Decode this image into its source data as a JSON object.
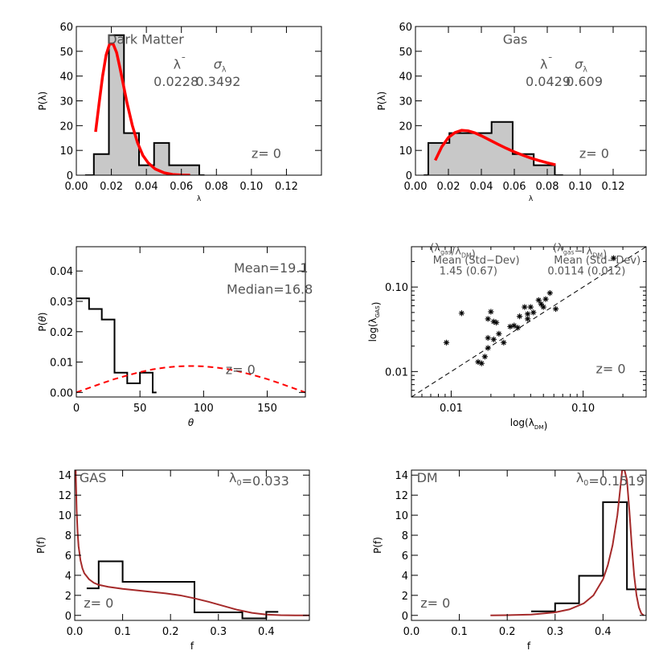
{
  "chart_data": [
    {
      "id": "p1",
      "type": "bar",
      "xlabel": "λ",
      "ylabel": "P(λ)",
      "xlim": [
        0,
        0.14
      ],
      "ylim": [
        0,
        60
      ],
      "xticks": [
        0.0,
        0.02,
        0.04,
        0.06,
        0.08,
        0.1,
        0.12
      ],
      "xtick_labels": [
        "0.00",
        "0.02",
        "0.04",
        "0.06",
        "0.08",
        "0.10",
        "0.12"
      ],
      "yticks": [
        0,
        10,
        20,
        30,
        40,
        50,
        60
      ],
      "ytick_labels": [
        "0",
        "10",
        "20",
        "30",
        "40",
        "50",
        "60"
      ],
      "hist": {
        "edges": [
          0.005,
          0.01,
          0.0186,
          0.0272,
          0.0358,
          0.0444,
          0.053,
          0.0616,
          0.0702,
          0.0732
        ],
        "values": [
          0,
          8.5,
          56.5,
          17,
          4,
          13,
          4,
          4,
          0
        ],
        "fill": "#c8c8c8"
      },
      "fit": {
        "color": "#ff0000",
        "x": [
          0.011,
          0.013,
          0.015,
          0.017,
          0.019,
          0.021,
          0.023,
          0.025,
          0.027,
          0.029,
          0.032,
          0.035,
          0.038,
          0.041,
          0.045,
          0.05,
          0.055,
          0.06,
          0.065
        ],
        "y": [
          17.5,
          29,
          40,
          48.5,
          53,
          53,
          49.5,
          43,
          36,
          29,
          20,
          13,
          8,
          5,
          2.5,
          1,
          0.3,
          0.1,
          0
        ]
      },
      "annotations": [
        {
          "text": "Dark Matter",
          "x": 0.0395,
          "y": 53
        },
        {
          "text": "λ¯",
          "x": 0.059,
          "y": 43
        },
        {
          "text": "σλ",
          "x": 0.082,
          "y": 43
        },
        {
          "text": "0.0228",
          "x": 0.057,
          "y": 36
        },
        {
          "text": "0.3492",
          "x": 0.081,
          "y": 36
        },
        {
          "text": "z= 0",
          "x": 0.1085,
          "y": 7
        }
      ]
    },
    {
      "id": "p2",
      "type": "bar",
      "xlabel": "λ",
      "ylabel": "P(λ)",
      "xlim": [
        0,
        0.14
      ],
      "ylim": [
        0,
        60
      ],
      "xticks": [
        0.0,
        0.02,
        0.04,
        0.06,
        0.08,
        0.1,
        0.12
      ],
      "xtick_labels": [
        "0.00",
        "0.02",
        "0.04",
        "0.06",
        "0.08",
        "0.10",
        "0.12"
      ],
      "yticks": [
        0,
        10,
        20,
        30,
        40,
        50,
        60
      ],
      "ytick_labels": [
        "0",
        "10",
        "20",
        "30",
        "40",
        "50",
        "60"
      ],
      "hist": {
        "edges": [
          0.005,
          0.0078,
          0.0206,
          0.0334,
          0.0462,
          0.059,
          0.0718,
          0.0846,
          0.0896
        ],
        "values": [
          0,
          13,
          17,
          17,
          21.5,
          8.5,
          4,
          0
        ],
        "fill": "#c8c8c8"
      },
      "fit": {
        "color": "#ff0000",
        "x": [
          0.012,
          0.016,
          0.02,
          0.024,
          0.028,
          0.032,
          0.036,
          0.04,
          0.045,
          0.05,
          0.055,
          0.06,
          0.065,
          0.07,
          0.075,
          0.08,
          0.085
        ],
        "y": [
          6,
          11.5,
          15.2,
          17.2,
          18.1,
          17.9,
          17.1,
          15.9,
          14.2,
          12.5,
          10.9,
          9.4,
          8.1,
          6.9,
          5.9,
          5,
          4.2
        ]
      },
      "annotations": [
        {
          "text": "Gas",
          "x": 0.0605,
          "y": 53
        },
        {
          "text": "λ¯",
          "x": 0.0795,
          "y": 43
        },
        {
          "text": "σλ",
          "x": 0.1005,
          "y": 43
        },
        {
          "text": "0.0429",
          "x": 0.0805,
          "y": 36
        },
        {
          "text": "0.609",
          "x": 0.1025,
          "y": 36
        },
        {
          "text": "z= 0",
          "x": 0.1085,
          "y": 7
        }
      ]
    },
    {
      "id": "p3",
      "type": "line",
      "xlabel": "θ",
      "ylabel": "P(θ)",
      "xlim": [
        0,
        180
      ],
      "ylim": [
        -0.0015,
        0.048
      ],
      "xticks": [
        0,
        50,
        100,
        150
      ],
      "xtick_labels": [
        "0",
        "50",
        "100",
        "150"
      ],
      "yticks": [
        0,
        0.01,
        0.02,
        0.03,
        0.04
      ],
      "ytick_labels": [
        "0.00",
        "0.01",
        "0.02",
        "0.03",
        "0.04"
      ],
      "hist": {
        "edges": [
          0,
          10,
          20,
          30,
          40,
          50,
          60,
          63
        ],
        "values": [
          0.031,
          0.0275,
          0.024,
          0.0065,
          0.003,
          0.0065,
          0
        ],
        "fill": "none"
      },
      "curve": {
        "color": "#ff0000",
        "dashed": true,
        "x": [
          0,
          10,
          20,
          30,
          40,
          50,
          60,
          70,
          80,
          90,
          100,
          110,
          120,
          130,
          140,
          150,
          160,
          170,
          180
        ],
        "y": [
          0,
          0.0015,
          0.003,
          0.0044,
          0.0056,
          0.0067,
          0.0076,
          0.0082,
          0.0086,
          0.0087,
          0.0086,
          0.0082,
          0.0076,
          0.0067,
          0.0056,
          0.0044,
          0.003,
          0.0015,
          0
        ]
      },
      "annotations": [
        {
          "text": "Mean=19.1",
          "x": 153,
          "y": 0.0395
        },
        {
          "text": "Median=16.8",
          "x": 152,
          "y": 0.0325
        },
        {
          "text": "z= 0",
          "x": 129,
          "y": 0.006
        }
      ]
    },
    {
      "id": "p4",
      "type": "scatter",
      "xlabel": "log(λDM)",
      "ylabel": "log(λGAS)",
      "xscale": "log",
      "yscale": "log",
      "xlim": [
        0.005,
        0.3
      ],
      "ylim": [
        0.005,
        0.3
      ],
      "xticks": [
        0.01,
        0.1
      ],
      "xtick_labels": [
        "0.01",
        "0.10"
      ],
      "yticks": [
        0.01,
        0.1
      ],
      "ytick_labels": [
        "0.01",
        "0.10"
      ],
      "marker": "*",
      "points": [
        [
          0.0092,
          0.022
        ],
        [
          0.012,
          0.049
        ],
        [
          0.016,
          0.013
        ],
        [
          0.017,
          0.0125
        ],
        [
          0.018,
          0.015
        ],
        [
          0.019,
          0.025
        ],
        [
          0.019,
          0.019
        ],
        [
          0.019,
          0.042
        ],
        [
          0.02,
          0.051
        ],
        [
          0.021,
          0.039
        ],
        [
          0.021,
          0.024
        ],
        [
          0.022,
          0.038
        ],
        [
          0.023,
          0.028
        ],
        [
          0.025,
          0.022
        ],
        [
          0.028,
          0.034
        ],
        [
          0.03,
          0.035
        ],
        [
          0.032,
          0.033
        ],
        [
          0.033,
          0.045
        ],
        [
          0.036,
          0.058
        ],
        [
          0.038,
          0.048
        ],
        [
          0.038,
          0.042
        ],
        [
          0.04,
          0.058
        ],
        [
          0.042,
          0.05
        ],
        [
          0.046,
          0.07
        ],
        [
          0.048,
          0.063
        ],
        [
          0.05,
          0.058
        ],
        [
          0.052,
          0.072
        ],
        [
          0.056,
          0.085
        ],
        [
          0.062,
          0.055
        ],
        [
          0.17,
          0.22
        ]
      ],
      "diagonal": true,
      "annotations": [
        {
          "text": "(λgas/λDM)",
          "x": 0.0103,
          "y": 0.266
        },
        {
          "text": "(λgas− λDM)",
          "x": 0.0945,
          "y": 0.266
        },
        {
          "text": "Mean   (Std−Dev)",
          "x": 0.0155,
          "y": 0.19
        },
        {
          "text": "Mean   (Std−Dev)",
          "x": 0.128,
          "y": 0.19
        },
        {
          "text": "1.45  (0.67)",
          "x": 0.0135,
          "y": 0.141
        },
        {
          "text": "0.0114  (0.012)",
          "x": 0.106,
          "y": 0.141
        },
        {
          "text": "z= 0",
          "x": 0.162,
          "y": 0.0095
        }
      ]
    },
    {
      "id": "p5",
      "type": "line",
      "xlabel": "f",
      "ylabel": "P(f)",
      "xlim": [
        0,
        0.49
      ],
      "ylim": [
        -0.5,
        14.5
      ],
      "xticks": [
        0,
        0.1,
        0.2,
        0.3,
        0.4
      ],
      "xtick_labels": [
        "0.0",
        "0.1",
        "0.2",
        "0.3",
        "0.4"
      ],
      "yticks": [
        0,
        2,
        4,
        6,
        8,
        10,
        12,
        14
      ],
      "ytick_labels": [
        "0",
        "2",
        "4",
        "6",
        "8",
        "10",
        "12",
        "14"
      ],
      "hist": {
        "edges": [
          0.025,
          0.05,
          0.1,
          0.25,
          0.35,
          0.4,
          0.425
        ],
        "values": [
          2.7,
          5.4,
          3.35,
          0.3,
          -0.3,
          0.35
        ],
        "fill": "none"
      },
      "curve": {
        "color": "#a52a2a",
        "x": [
          0.002,
          0.004,
          0.006,
          0.008,
          0.012,
          0.016,
          0.02,
          0.03,
          0.04,
          0.05,
          0.07,
          0.1,
          0.13,
          0.16,
          0.19,
          0.22,
          0.25,
          0.28,
          0.31,
          0.34,
          0.37,
          0.4,
          0.43,
          0.46,
          0.49
        ],
        "y": [
          14.5,
          10.5,
          8.3,
          6.9,
          5.5,
          4.7,
          4.2,
          3.6,
          3.25,
          3.05,
          2.85,
          2.65,
          2.5,
          2.35,
          2.2,
          2.0,
          1.7,
          1.35,
          0.95,
          0.55,
          0.25,
          0.08,
          0.02,
          0,
          0
        ]
      },
      "annotations": [
        {
          "text": "GAS",
          "x": 0.038,
          "y": 13.3
        },
        {
          "text": "λ0=0.033",
          "x": 0.385,
          "y": 13.3
        },
        {
          "text": "z= 0",
          "x": 0.05,
          "y": 0.8
        }
      ]
    },
    {
      "id": "p6",
      "type": "line",
      "xlabel": "f",
      "ylabel": "P(f)",
      "xlim": [
        0,
        0.49
      ],
      "ylim": [
        -0.5,
        14.5
      ],
      "xticks": [
        0,
        0.1,
        0.2,
        0.3,
        0.4
      ],
      "xtick_labels": [
        "0.0",
        "0.1",
        "0.2",
        "0.3",
        "0.4"
      ],
      "yticks": [
        0,
        2,
        4,
        6,
        8,
        10,
        12,
        14
      ],
      "ytick_labels": [
        "0",
        "2",
        "4",
        "6",
        "8",
        "10",
        "12",
        "14"
      ],
      "hist": {
        "edges": [
          0.25,
          0.3,
          0.35,
          0.4,
          0.45,
          0.49
        ],
        "values": [
          0.4,
          1.2,
          3.95,
          11.3,
          2.6
        ],
        "fill": "none"
      },
      "curve": {
        "color": "#a52a2a",
        "x": [
          0.165,
          0.2,
          0.25,
          0.3,
          0.33,
          0.36,
          0.38,
          0.4,
          0.41,
          0.42,
          0.43,
          0.435,
          0.44,
          0.445,
          0.45,
          0.455,
          0.46,
          0.465,
          0.47,
          0.475,
          0.48,
          0.485
        ],
        "y": [
          0,
          0.02,
          0.08,
          0.3,
          0.6,
          1.2,
          2.0,
          3.6,
          5.0,
          7.0,
          10.0,
          12.2,
          14.5,
          14.5,
          13.5,
          10.5,
          7.0,
          4.0,
          2.0,
          0.8,
          0.2,
          0
        ]
      },
      "annotations": [
        {
          "text": "DM",
          "x": 0.033,
          "y": 13.3
        },
        {
          "text": "λ0=0.1519",
          "x": 0.415,
          "y": 13.3
        },
        {
          "text": "z= 0",
          "x": 0.05,
          "y": 0.8
        }
      ]
    }
  ]
}
